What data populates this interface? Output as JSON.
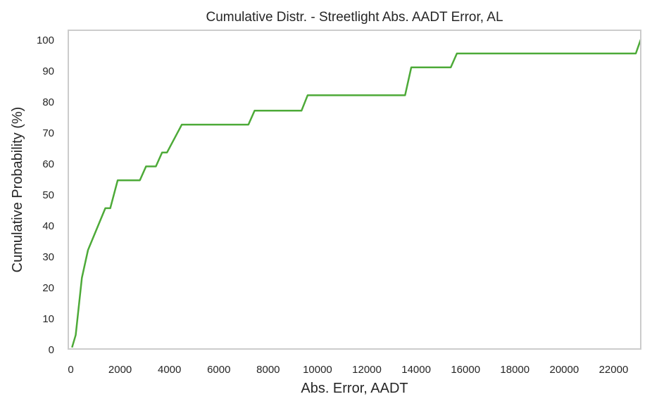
{
  "chart_data": {
    "type": "line",
    "title": "Cumulative Distr. - Streetlight Abs. AADT Error, AL",
    "xlabel": "Abs. Error, AADT",
    "ylabel": "Cumulative Probability (%)",
    "xlim": [
      -100,
      23100
    ],
    "ylim": [
      0,
      103
    ],
    "x_ticks": [
      0,
      2000,
      4000,
      6000,
      8000,
      10000,
      12000,
      14000,
      16000,
      18000,
      20000,
      22000
    ],
    "y_ticks": [
      0,
      10,
      20,
      30,
      40,
      50,
      60,
      70,
      80,
      90,
      100
    ],
    "grid": false,
    "line_color": "#4daa38",
    "series": [
      {
        "x": [
          50,
          200,
          450,
          700,
          1400,
          1600,
          1900,
          2800,
          3050,
          3450,
          3700,
          3900,
          4500,
          7200,
          7450,
          9350,
          9600,
          13550,
          13800,
          15400,
          15650,
          22900,
          23100
        ],
        "y": [
          0.5,
          4.5,
          23,
          32,
          45.5,
          45.5,
          54.5,
          54.5,
          59,
          59,
          63.5,
          63.5,
          72.5,
          72.5,
          77,
          77,
          82,
          82,
          91,
          91,
          95.5,
          95.5,
          100
        ]
      }
    ]
  }
}
